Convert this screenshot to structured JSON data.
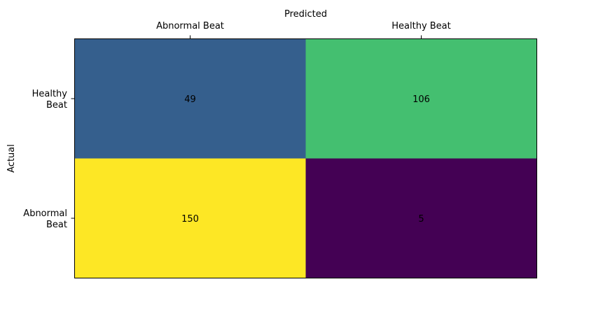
{
  "chart_data": {
    "type": "heatmap",
    "title": "",
    "xlabel": "Predicted",
    "ylabel": "Actual",
    "x_categories": [
      "Abnormal Beat",
      "Healthy Beat"
    ],
    "y_categories": [
      {
        "line1": "Healthy",
        "line2": "Beat"
      },
      {
        "line1": "Abnormal",
        "line2": "Beat"
      }
    ],
    "values": [
      [
        49,
        106
      ],
      [
        150,
        5
      ]
    ],
    "colors": [
      [
        "#355f8d",
        "#44bf70"
      ],
      [
        "#fde725",
        "#440154"
      ]
    ],
    "x_axis_position": "top",
    "colormap": "viridis",
    "grid": false
  }
}
